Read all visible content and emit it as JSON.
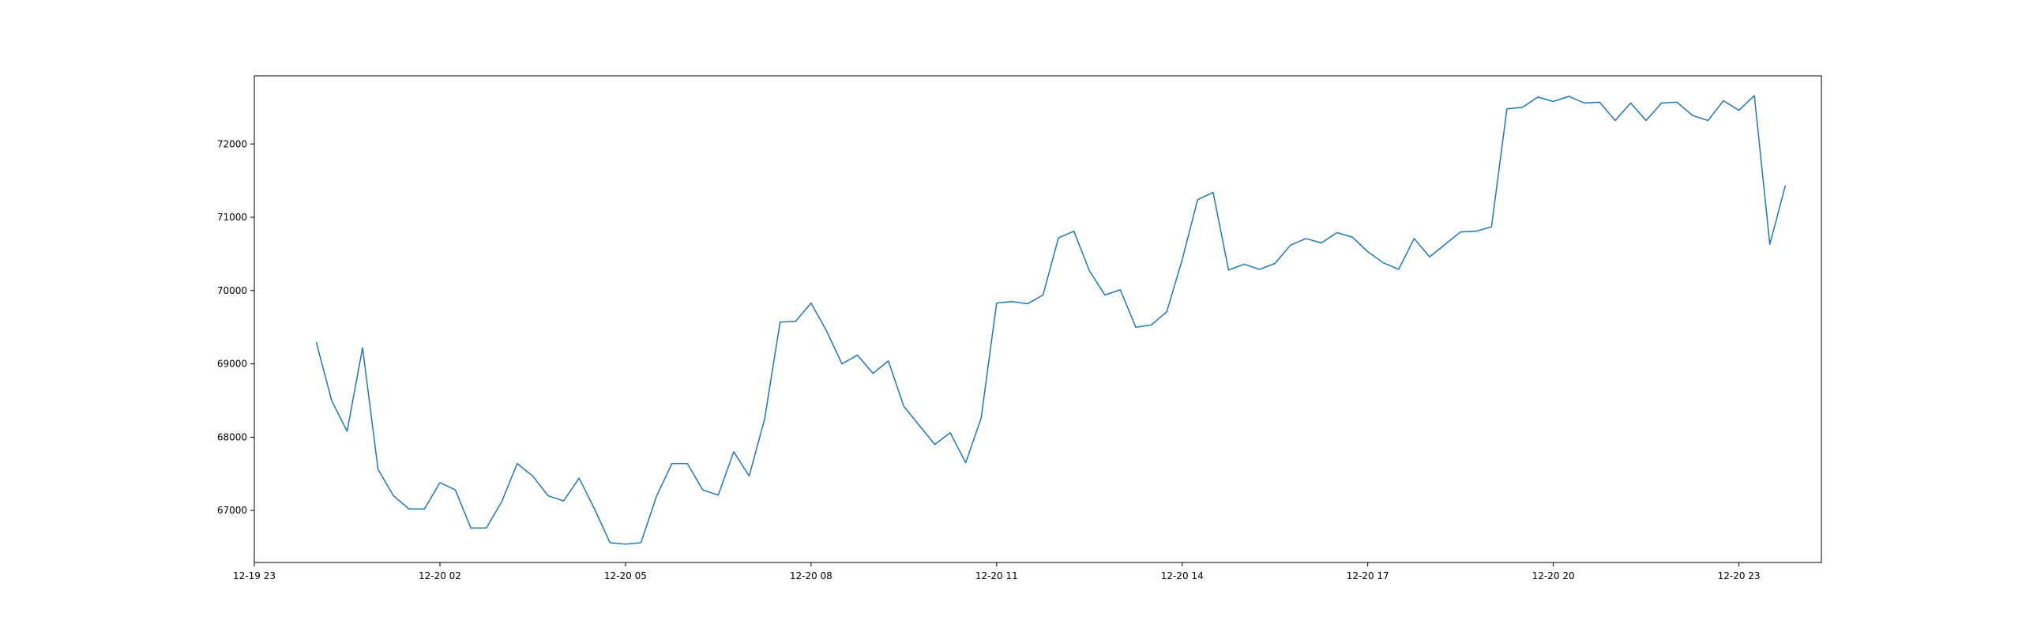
{
  "chart_data": {
    "type": "line",
    "title": "",
    "xlabel": "",
    "ylabel": "",
    "line_color": "#1f77b4",
    "grid": false,
    "legend": "none",
    "x_start": "12-20 00:00",
    "x_step_minutes": 15,
    "xlim": [
      "12-19 23:00",
      "12-21 00:20"
    ],
    "ylim": [
      66290,
      72930
    ],
    "x_ticks": [
      "12-19 23",
      "12-20 02",
      "12-20 05",
      "12-20 08",
      "12-20 11",
      "12-20 14",
      "12-20 17",
      "12-20 20",
      "12-20 23"
    ],
    "y_ticks": [
      67000,
      68000,
      69000,
      70000,
      71000,
      72000
    ],
    "y_tick_labels": [
      "67000",
      "68000",
      "69000",
      "70000",
      "71000",
      "72000"
    ],
    "series": [
      {
        "values": [
          69300,
          68500,
          68080,
          69220,
          67560,
          67200,
          67020,
          67020,
          67380,
          67280,
          66760,
          66760,
          67120,
          67640,
          67470,
          67200,
          67130,
          67440,
          67020,
          66560,
          66540,
          66560,
          67190,
          67640,
          67640,
          67280,
          67210,
          67800,
          67470,
          68250,
          69570,
          69580,
          69830,
          69450,
          69000,
          69120,
          68870,
          69040,
          68420,
          68160,
          67900,
          68060,
          67650,
          68260,
          69830,
          69850,
          69820,
          69940,
          70720,
          70810,
          70270,
          69940,
          70010,
          69500,
          69530,
          69710,
          70420,
          71240,
          71340,
          70280,
          70360,
          70290,
          70370,
          70620,
          70710,
          70650,
          70790,
          70730,
          70530,
          70380,
          70290,
          70710,
          70460,
          70630,
          70800,
          70810,
          70870,
          72480,
          72500,
          72640,
          72580,
          72650,
          72560,
          72570,
          72320,
          72560,
          72320,
          72560,
          72570,
          72390,
          72320,
          72590,
          72460,
          72660,
          70630,
          71430
        ]
      }
    ]
  }
}
